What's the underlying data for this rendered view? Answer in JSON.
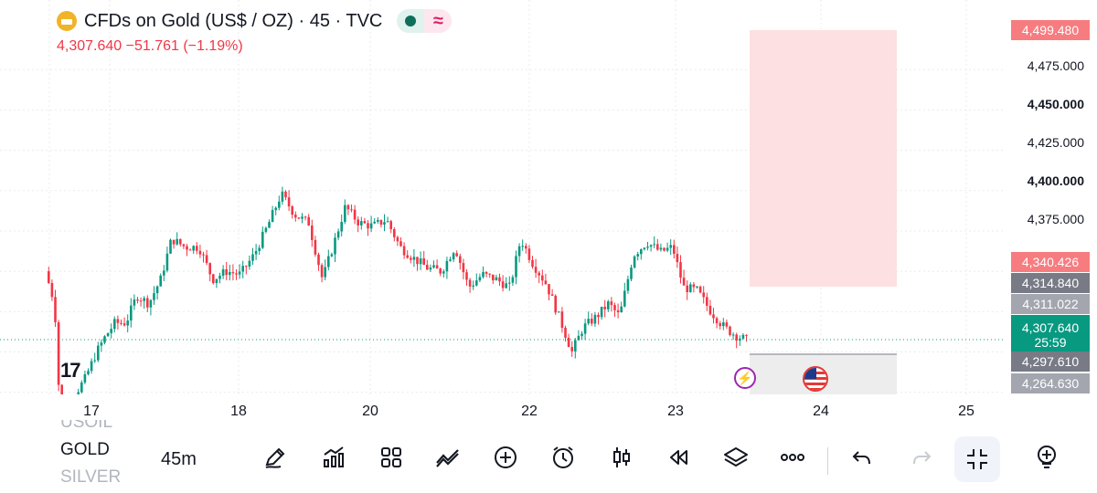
{
  "legend": {
    "title": "CFDs on Gold (US$ / OZ) · 45 · TVC",
    "price_line": "4,307.640  −51.761 (−1.19%)",
    "icons": [
      "gold-icon",
      "market-status-dot-icon",
      "indicator-wave-icon"
    ]
  },
  "price_axis": {
    "labels": [
      {
        "text": "4,475.000",
        "bold": false
      },
      {
        "text": "4,450.000",
        "bold": true
      },
      {
        "text": "4,425.000",
        "bold": false
      },
      {
        "text": "4,400.000",
        "bold": true
      },
      {
        "text": "4,375.000",
        "bold": false
      }
    ],
    "tags": {
      "target": "4,499.480",
      "entry_upper": "4,340.426",
      "level_a": "4,314.840",
      "level_b": "4,311.022",
      "last_price": "4,307.640",
      "countdown": "25:59",
      "level_c": "4,297.610",
      "stop": "4,264.630"
    },
    "colors": {
      "red_tag": "#f77c80",
      "dark_tag": "#787b86",
      "gray_tag": "#a3a6af",
      "green_tag": "#089981"
    }
  },
  "time_axis": [
    "17",
    "18",
    "20",
    "22",
    "23",
    "24",
    "25"
  ],
  "chart_data": {
    "type": "candlestick",
    "y_range": [
      4264.63,
      4499.48
    ],
    "last_price": 4307.64,
    "up_color": "#089981",
    "down_color": "#f23645",
    "position_tool": {
      "direction": "short",
      "target": 4499.48,
      "entry": 4340.426,
      "stop": 4264.63
    }
  },
  "toolbar": {
    "symbols": [
      "USOIL",
      "GOLD",
      "SILVER"
    ],
    "active_symbol": "GOLD",
    "interval": "45m",
    "tools": [
      "pencil-icon",
      "indicators-icon",
      "layout-grid-icon",
      "drawing-trend-icon",
      "add-icon",
      "alert-clock-icon",
      "candles-icon",
      "replay-icon",
      "layers-icon",
      "more-icon",
      "undo-icon",
      "redo-icon",
      "exit-fullscreen-icon",
      "add-note-icon"
    ]
  }
}
